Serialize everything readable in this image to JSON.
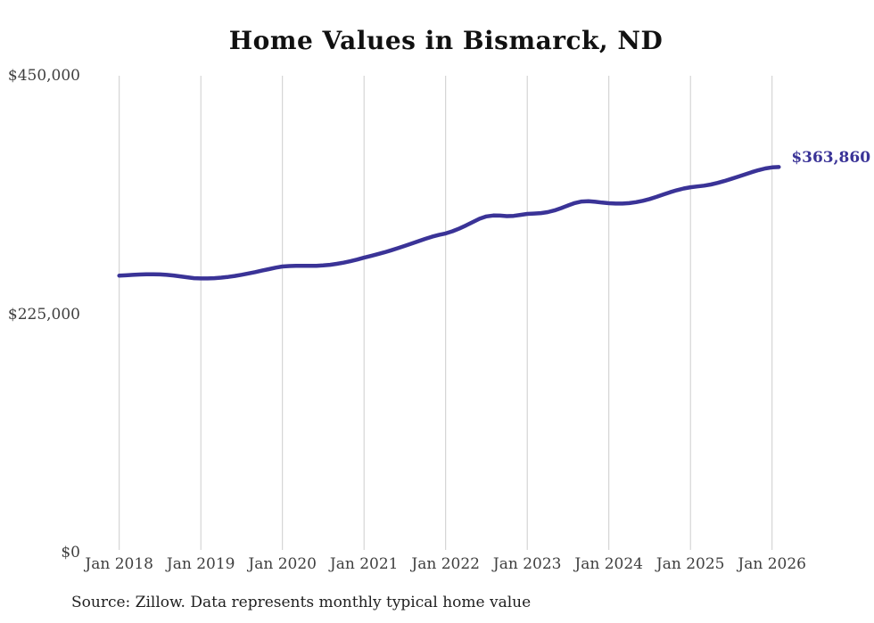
{
  "chart_data": {
    "type": "line",
    "title": "Home Values in Bismarck, ND",
    "source": "Source: Zillow. Data represents monthly typical home value",
    "end_label": "$363,860",
    "latest_value": 363860,
    "x_tick_labels": [
      "Jan 2018",
      "Jan 2019",
      "Jan 2020",
      "Jan 2021",
      "Jan 2022",
      "Jan 2023",
      "Jan 2024",
      "Jan 2025",
      "Jan 2026"
    ],
    "y_ticks": [
      {
        "label": "$0",
        "value": 0
      },
      {
        "label": "$225,000",
        "value": 225000
      },
      {
        "label": "$450,000",
        "value": 450000
      }
    ],
    "ylim": [
      0,
      450000
    ],
    "grid": "vertical-only",
    "legend": "none",
    "x_range_months": [
      "2018-01",
      "2026-02"
    ],
    "points_per_year": 12,
    "series": [
      {
        "name": "Monthly typical home value",
        "values": [
          261300,
          261700,
          262100,
          262400,
          262700,
          262700,
          262500,
          262100,
          261500,
          260700,
          259800,
          259000,
          258700,
          258700,
          259000,
          259500,
          260200,
          261100,
          262200,
          263400,
          264700,
          266100,
          267500,
          268900,
          270000,
          270400,
          270600,
          270600,
          270600,
          270700,
          271000,
          271600,
          272500,
          273600,
          275000,
          276600,
          278300,
          279900,
          281600,
          283400,
          285300,
          287300,
          289400,
          291600,
          293900,
          296100,
          298100,
          299800,
          301200,
          303200,
          305800,
          308800,
          312000,
          315100,
          317300,
          318100,
          318000,
          317500,
          317800,
          318700,
          319600,
          320000,
          320400,
          321300,
          322900,
          325100,
          327600,
          329900,
          331300,
          331600,
          331100,
          330300,
          329700,
          329400,
          329400,
          329800,
          330700,
          332000,
          333700,
          335700,
          337900,
          340100,
          342000,
          343600,
          344800,
          345500,
          346300,
          347400,
          348900,
          350700,
          352700,
          354800,
          356900,
          359000,
          360900,
          362500,
          363500,
          363860
        ]
      }
    ],
    "colors": {
      "line": "#3a3397",
      "end_label": "#3a3397",
      "gridline": "#cccccc",
      "title": "#111111",
      "tick_text": "#3f3f3f",
      "source_text": "#1f1f1f"
    }
  }
}
